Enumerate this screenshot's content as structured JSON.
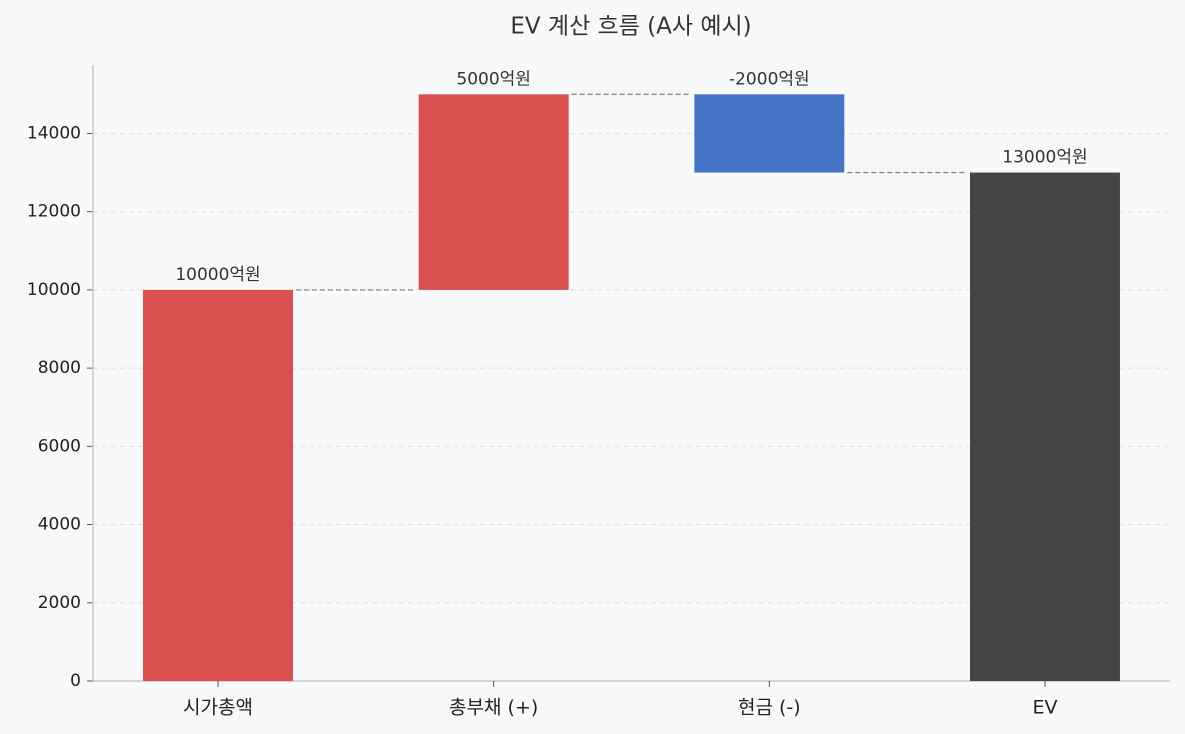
{
  "chart_data": {
    "type": "waterfall",
    "title": "EV 계산 흐름 (A사 예시)",
    "categories": [
      "시가총액",
      "총부채 (+)",
      "현금 (-)",
      "EV"
    ],
    "values": [
      10000,
      5000,
      -2000,
      13000
    ],
    "value_labels": [
      "10000억원",
      "5000억원",
      "-2000억원",
      "13000억원"
    ],
    "colors": [
      "#d94f4f",
      "#d94f4f",
      "#4472c4",
      "#444444"
    ],
    "ylim": [
      0,
      15750
    ],
    "yticks": [
      0,
      2000,
      4000,
      6000,
      8000,
      10000,
      12000,
      14000
    ],
    "grid": true
  }
}
